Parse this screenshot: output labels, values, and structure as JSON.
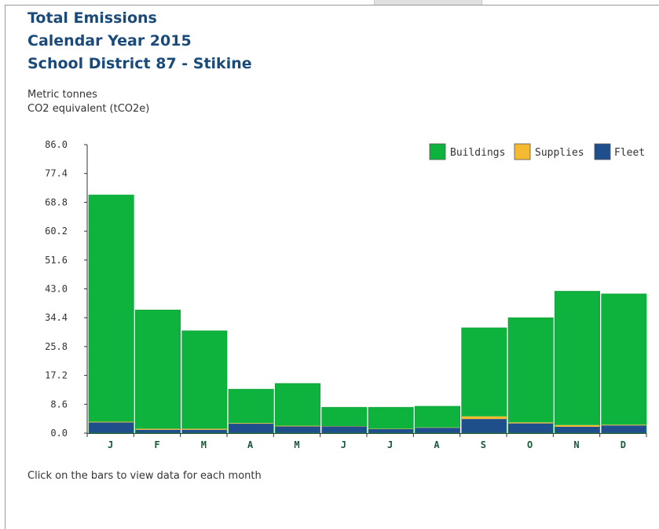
{
  "header": {
    "title_lines": [
      "Total Emissions",
      "Calendar Year 2015",
      "School District 87 - Stikine"
    ]
  },
  "units": [
    "Metric tonnes",
    "CO2 equivalent (tCO2e)"
  ],
  "note": "Click on the bars to view data for each month",
  "chart_data": {
    "type": "bar",
    "stacked": true,
    "categories": [
      "J",
      "F",
      "M",
      "A",
      "M",
      "J",
      "J",
      "A",
      "S",
      "O",
      "N",
      "D"
    ],
    "yticks": [
      "0.0",
      "8.6",
      "17.2",
      "25.8",
      "34.4",
      "43.0",
      "51.6",
      "60.2",
      "68.8",
      "77.4",
      "86.0"
    ],
    "ylim": [
      0,
      86
    ],
    "legend_position": "top-right",
    "grid": false,
    "series": [
      {
        "name": "Fleet",
        "color": "#1f4e8c",
        "values": [
          3.2,
          1.0,
          1.0,
          2.8,
          2.0,
          2.0,
          1.2,
          1.6,
          4.2,
          2.9,
          1.9,
          2.3
        ]
      },
      {
        "name": "Supplies",
        "color": "#f5b932",
        "values": [
          0.2,
          0.3,
          0.3,
          0.2,
          0.2,
          0.1,
          0.1,
          0.1,
          0.8,
          0.3,
          0.5,
          0.2
        ]
      },
      {
        "name": "Buildings",
        "color": "#0db33c",
        "values": [
          67.6,
          35.4,
          29.2,
          10.1,
          12.6,
          5.6,
          6.4,
          6.3,
          26.4,
          31.2,
          39.9,
          39.0
        ]
      }
    ],
    "legend_order": [
      "Buildings",
      "Supplies",
      "Fleet"
    ]
  }
}
